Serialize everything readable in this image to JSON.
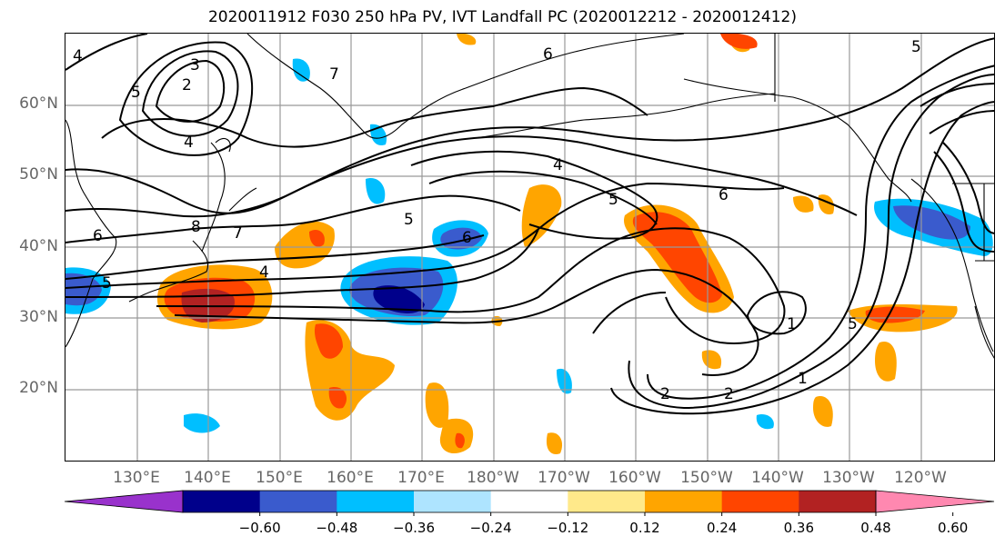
{
  "title": "2020011912 F030 250 hPa PV, IVT Landfall PC (2020012212 - 2020012412)",
  "lat_ticks": [
    "60°N",
    "50°N",
    "40°N",
    "30°N",
    "20°N"
  ],
  "lon_ticks": [
    "130°E",
    "140°E",
    "150°E",
    "160°E",
    "170°E",
    "180°W",
    "170°W",
    "160°W",
    "150°W",
    "140°W",
    "130°W",
    "120°W"
  ],
  "colorbar": {
    "tick_labels": [
      "−0.60",
      "−0.48",
      "−0.36",
      "−0.24",
      "−0.12",
      "0.12",
      "0.24",
      "0.36",
      "0.48",
      "0.60"
    ],
    "colors": [
      "#9932cc",
      "#00008b",
      "#3a5bcd",
      "#00bfff",
      "#aee4ff",
      "#ffffff",
      "#ffe98a",
      "#ffa500",
      "#ff4500",
      "#b22222",
      "#ff88b0"
    ]
  },
  "contour_labels": [
    "4",
    "5",
    "2",
    "3",
    "4",
    "8",
    "7",
    "6",
    "7",
    "4",
    "5",
    "6",
    "4",
    "5",
    "6",
    "6",
    "5",
    "1",
    "2",
    "1",
    "2",
    "5",
    "5"
  ],
  "colors": {
    "contour": "#000000",
    "grid": "#999999",
    "coast": "#000000"
  }
}
